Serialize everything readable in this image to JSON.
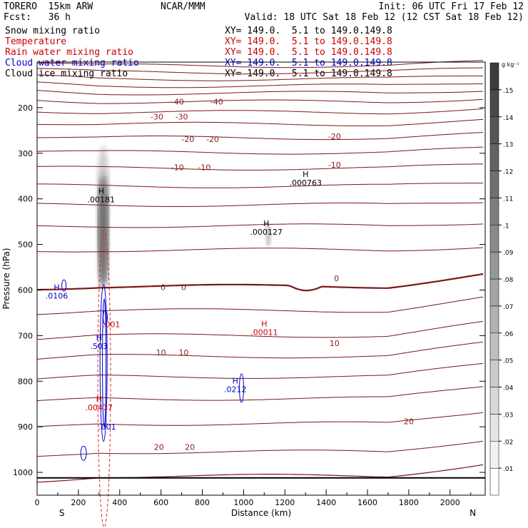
{
  "header": {
    "model": "TORERO  15km ARW",
    "center": "NCAR/MMM",
    "init": "Init: 06 UTC Fri 17 Feb 12",
    "fcst": "Fcst:   36 h",
    "valid": "Valid: 18 UTC Sat 18 Feb 12 (12 CST Sat 18 Feb 12)",
    "fields": [
      {
        "name": "Snow mixing ratio",
        "color": "#000000",
        "xy": "XY= 149.0.  5.1 to 149.0.149.8"
      },
      {
        "name": "Temperature",
        "color": "#cc0000",
        "xy": "XY= 149.0.  5.1 to 149.0.149.8"
      },
      {
        "name": "Rain water mixing ratio",
        "color": "#cc0000",
        "xy": "XY= 149.0.  5.1 to 149.0.149.8"
      },
      {
        "name": "Cloud water mixing ratio",
        "color": "#0000cc",
        "xy": "XY= 149.0.  5.1 to 149.0.149.8"
      },
      {
        "name": "Cloud ice mixing ratio",
        "color": "#000000",
        "xy": "XY= 149.0.  5.1 to 149.0.149.8"
      }
    ]
  },
  "chart_data": {
    "type": "cross-section-contour",
    "xlabel": "Distance (km)",
    "ylabel": "Pressure (hPa)",
    "xlim": [
      0,
      2170
    ],
    "ylim": [
      100,
      1050
    ],
    "x_ticks": [
      0,
      200,
      400,
      600,
      800,
      1000,
      1200,
      1400,
      1600,
      1800,
      2000
    ],
    "y_ticks": [
      200,
      300,
      400,
      500,
      600,
      700,
      800,
      900,
      1000
    ],
    "x_end_labels": {
      "left": "S",
      "right": "N"
    },
    "colorbar": {
      "unit": "g kg⁻¹",
      "ticks": [
        ".01",
        ".02",
        ".03",
        ".04",
        ".05",
        ".06",
        ".07",
        ".08",
        ".09",
        ".1",
        ".11",
        ".12",
        ".13",
        ".14",
        ".15"
      ]
    },
    "temperature_contours": [
      {
        "value": -40,
        "label": "-40",
        "labels_at": [
          680,
          870
        ]
      },
      {
        "value": -30,
        "label": "-30",
        "labels_at": [
          580,
          700
        ]
      },
      {
        "value": -20,
        "label": "-20",
        "labels_at": [
          730,
          850,
          1440
        ]
      },
      {
        "value": -10,
        "label": "-10",
        "labels_at": [
          680,
          810,
          1440
        ]
      },
      {
        "value": 0,
        "label": "0",
        "labels_at": [
          610,
          710,
          1450
        ]
      },
      {
        "value": 10,
        "label": "10",
        "labels_at": [
          600,
          710,
          1440
        ]
      },
      {
        "value": 20,
        "label": "20",
        "labels_at": [
          590,
          740,
          1800
        ]
      }
    ],
    "annotations": [
      {
        "label": "H",
        "value": ".00181",
        "x": 310,
        "p": 389,
        "color": "#000000"
      },
      {
        "label": "H",
        "value": ".000763",
        "x": 1300,
        "p": 352,
        "color": "#000000"
      },
      {
        "label": "H",
        "value": ".000127",
        "x": 1110,
        "p": 460,
        "color": "#000000"
      },
      {
        "label": "H",
        "value": ".0106",
        "x": 95,
        "p": 600,
        "color": "#0000cc"
      },
      {
        "label": "H",
        "value": ".00011",
        "x": 1100,
        "p": 680,
        "color": "#cc0000"
      },
      {
        "label": "",
        "value": ".001",
        "x": 360,
        "p": 675,
        "color": "#cc0000"
      },
      {
        "label": "H",
        "value": ".503",
        "x": 300,
        "p": 710,
        "color": "#0000cc"
      },
      {
        "label": "H",
        "value": ".0212",
        "x": 960,
        "p": 805,
        "color": "#0000cc"
      },
      {
        "label": "H",
        "value": ".00477",
        "x": 300,
        "p": 845,
        "color": "#cc0000"
      },
      {
        "label": "",
        "value": ".001",
        "x": 340,
        "p": 900,
        "color": "#0000cc"
      }
    ]
  }
}
